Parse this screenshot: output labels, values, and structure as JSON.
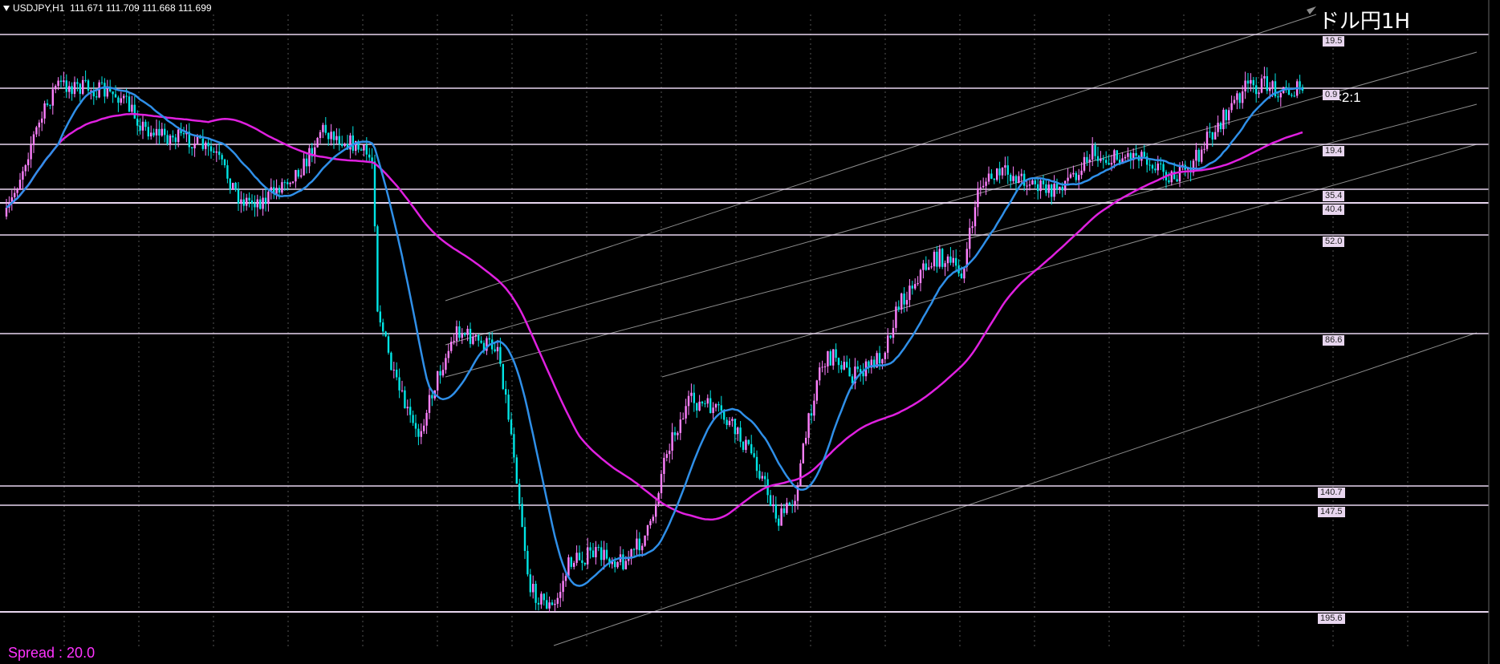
{
  "header": {
    "symbol_label": "USDJPY,H1",
    "ohlc": "111.671 111.709 111.668 111.699"
  },
  "title_jp": "ドル円1H",
  "ratio_label": "<2:1",
  "spread_label": "Spread : 20.0",
  "colors": {
    "background": "#000000",
    "bull_candle": "#ff80ff",
    "bear_candle": "#00e5e5",
    "ma_fast": "#2f8fe8",
    "ma_slow": "#e020e0",
    "level_line": "#e8d6ef",
    "channel_line": "#8c8c8c"
  },
  "chart_data": {
    "type": "candlestick",
    "symbol": "USDJPY",
    "timeframe": "H1",
    "levels": [
      {
        "label": "19.5"
      },
      {
        "label": "0.9"
      },
      {
        "label": "19.4"
      },
      {
        "label": "35.4"
      },
      {
        "label": "40.4"
      },
      {
        "label": "52.0"
      },
      {
        "label": "86.6"
      },
      {
        "label": "140.7"
      },
      {
        "label": "147.5"
      },
      {
        "label": "195.6"
      }
    ],
    "series": [
      {
        "key": "ma_fast"
      },
      {
        "key": "ma_slow"
      }
    ]
  }
}
